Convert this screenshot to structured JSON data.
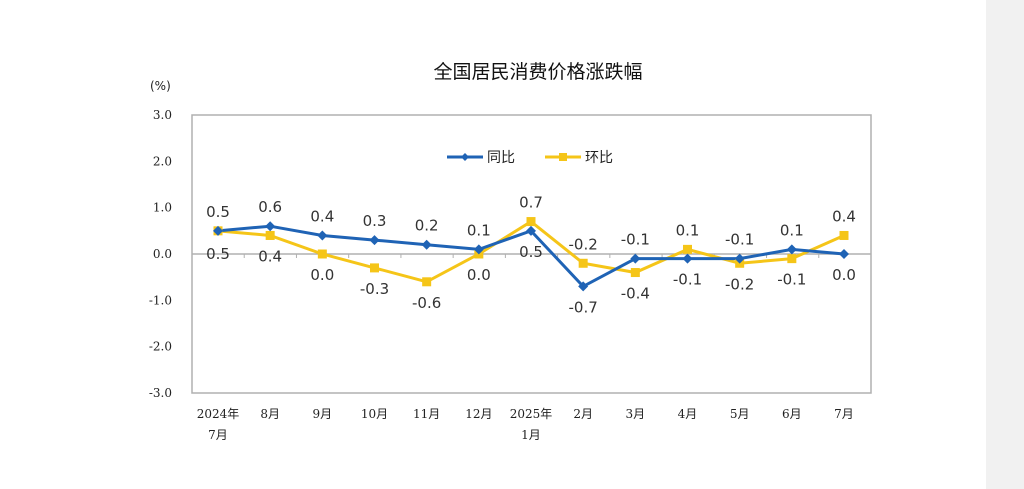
{
  "chart_data": {
    "type": "line",
    "title": "全国居民消费价格涨跌幅",
    "ylabel": "(%)",
    "ylim": [
      -3.0,
      3.0
    ],
    "yticks": [
      "3.0",
      "2.0",
      "1.0",
      "0.0",
      "-1.0",
      "-2.0",
      "-3.0"
    ],
    "categories": [
      [
        "2024年",
        "7月"
      ],
      [
        "8月"
      ],
      [
        "9月"
      ],
      [
        "10月"
      ],
      [
        "11月"
      ],
      [
        "12月"
      ],
      [
        "2025年",
        "1月"
      ],
      [
        "2月"
      ],
      [
        "3月"
      ],
      [
        "4月"
      ],
      [
        "5月"
      ],
      [
        "6月"
      ],
      [
        "7月"
      ]
    ],
    "legend_position": "top-center",
    "grid": false,
    "series": [
      {
        "name": "同比",
        "color": "#1f63b5",
        "marker": "diamond",
        "values": [
          0.5,
          0.6,
          0.4,
          0.3,
          0.2,
          0.1,
          0.5,
          -0.7,
          -0.1,
          -0.1,
          -0.1,
          0.1,
          0.0
        ]
      },
      {
        "name": "环比",
        "color": "#f5c518",
        "marker": "square",
        "values": [
          0.5,
          0.4,
          0.0,
          -0.3,
          -0.6,
          0.0,
          0.7,
          -0.2,
          -0.4,
          0.1,
          -0.2,
          -0.1,
          0.4
        ]
      }
    ]
  }
}
